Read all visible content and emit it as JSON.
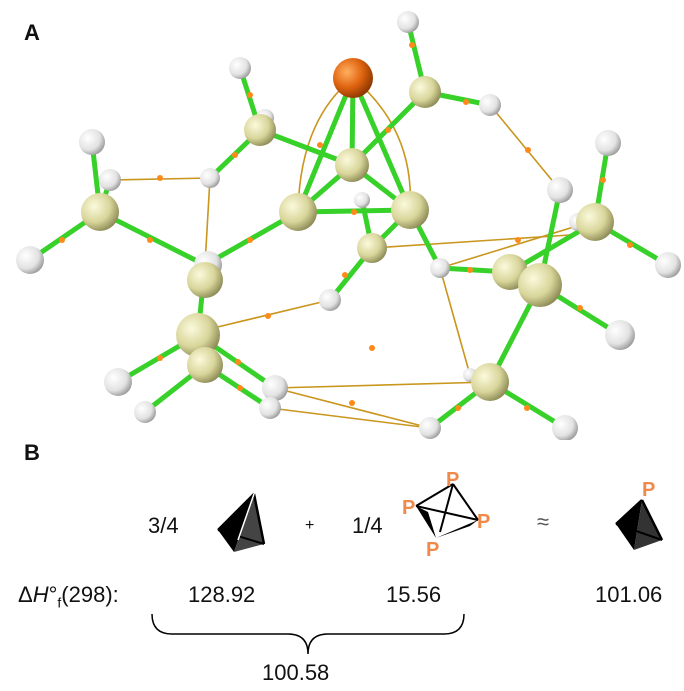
{
  "panels": {
    "a": "A",
    "b": "B"
  },
  "equation": {
    "coef1": "3/4",
    "plus": "+",
    "coef2": "1/4",
    "approx": "≈",
    "p_label": "P",
    "p4_labels": [
      "P",
      "P",
      "P",
      "P"
    ]
  },
  "thermo": {
    "label_delta": "Δ",
    "label_H": "H",
    "label_deg": "°",
    "label_sub": "f",
    "label_rest": "(298):",
    "value1": "128.92",
    "value2": "15.56",
    "value3": "101.06",
    "sum": "100.58"
  },
  "colors": {
    "bond": "#37d12a",
    "phosphorus": "#e06410",
    "carbon": "#d8d59a",
    "hydrogen": "#eeeeee",
    "bond_path": "#c9961e",
    "critical_point": "#ff8a1a"
  }
}
